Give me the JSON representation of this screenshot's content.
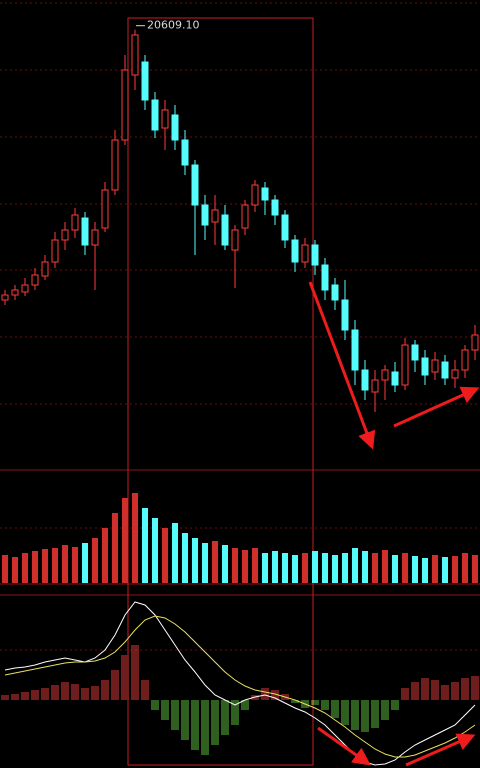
{
  "chart_data": [
    {
      "type": "candlestick",
      "up_color": "#ff3b3b",
      "down_color": "#54fcfc",
      "ylim": [
        7400,
        21500
      ],
      "open": [
        12500,
        12650,
        12740,
        12950,
        13220,
        13640,
        14300,
        14600,
        14960,
        14150,
        14660,
        15800,
        17300,
        19250,
        19640,
        18500,
        17660,
        18050,
        17300,
        16550,
        15350,
        14840,
        15050,
        14000,
        14660,
        15350,
        15860,
        15500,
        15050,
        14300,
        13640,
        14150,
        13550,
        12950,
        12500,
        11600,
        10400,
        9740,
        10100,
        10340,
        9950,
        11150,
        10760,
        10340,
        10640,
        10160,
        10400,
        11000
      ],
      "high": [
        12800,
        12950,
        13160,
        13460,
        13850,
        14540,
        14840,
        15260,
        15140,
        14840,
        16040,
        17600,
        19850,
        20609.1,
        19850,
        18740,
        18500,
        18350,
        17600,
        16700,
        15650,
        15650,
        15350,
        14750,
        15500,
        16100,
        16040,
        15650,
        15200,
        14450,
        14360,
        14300,
        13760,
        13160,
        13100,
        11900,
        10700,
        10400,
        10550,
        10640,
        11360,
        11300,
        11000,
        10940,
        10850,
        10700,
        11150,
        11750
      ],
      "high_labels": [
        null,
        null,
        null,
        null,
        null,
        null,
        null,
        null,
        null,
        null,
        null,
        null,
        null,
        "20609.10",
        null,
        null,
        null,
        null,
        null,
        null,
        null,
        null,
        null,
        null,
        null,
        null,
        null,
        null,
        null,
        null,
        null,
        null,
        null,
        null,
        null,
        null,
        null,
        null,
        null,
        null,
        null,
        null,
        null,
        null,
        null,
        null,
        null,
        null
      ],
      "low": [
        12350,
        12500,
        12620,
        12800,
        13100,
        13460,
        14000,
        14360,
        13850,
        12800,
        14540,
        15650,
        17150,
        18800,
        18200,
        17360,
        17000,
        17000,
        16250,
        13850,
        14300,
        14150,
        14000,
        12860,
        14450,
        15140,
        15050,
        14750,
        14060,
        13340,
        13460,
        13250,
        12500,
        12200,
        11300,
        9950,
        9500,
        9140,
        9500,
        9740,
        9800,
        10340,
        9950,
        10100,
        9950,
        9860,
        10160,
        10700
      ],
      "close": [
        12650,
        12800,
        12950,
        13250,
        13640,
        14300,
        14600,
        15050,
        14150,
        14600,
        15800,
        17300,
        19400,
        20450,
        18500,
        17600,
        18200,
        17300,
        16550,
        15350,
        14750,
        15200,
        14150,
        14600,
        15350,
        15950,
        15500,
        15050,
        14300,
        13640,
        14150,
        13550,
        12800,
        12500,
        11600,
        10400,
        9800,
        10100,
        10400,
        9950,
        11150,
        10700,
        10250,
        10700,
        10160,
        10400,
        11000,
        11450
      ]
    },
    {
      "type": "volume",
      "up_color": "#d0302c",
      "down_color": "#54fcfc",
      "ylim": [
        0,
        100
      ],
      "values": [
        28,
        26,
        30,
        32,
        34,
        35,
        38,
        36,
        40,
        45,
        55,
        70,
        85,
        90,
        75,
        65,
        55,
        60,
        50,
        45,
        40,
        42,
        38,
        35,
        33,
        35,
        30,
        32,
        30,
        28,
        30,
        32,
        30,
        28,
        30,
        35,
        32,
        30,
        33,
        28,
        30,
        27,
        25,
        28,
        26,
        27,
        30,
        28
      ]
    },
    {
      "type": "macd",
      "ylim": [
        -68,
        105
      ],
      "up_color": "#e03a3a",
      "down_color": "#5fbf3f",
      "histogram": [
        5,
        6,
        8,
        10,
        12,
        15,
        18,
        16,
        12,
        14,
        20,
        30,
        45,
        55,
        20,
        -10,
        -20,
        -30,
        -40,
        -50,
        -55,
        -45,
        -35,
        -25,
        -10,
        5,
        12,
        10,
        6,
        -3,
        -8,
        -5,
        -10,
        -18,
        -25,
        -30,
        -32,
        -28,
        -20,
        -10,
        12,
        18,
        22,
        20,
        15,
        18,
        22,
        24
      ],
      "series": [
        {
          "color": "#ffffff",
          "values": [
            30,
            32,
            33,
            35,
            38,
            40,
            42,
            40,
            38,
            42,
            50,
            65,
            85,
            98,
            95,
            85,
            70,
            55,
            40,
            28,
            15,
            5,
            0,
            -5,
            0,
            3,
            5,
            2,
            -3,
            -8,
            -12,
            -18,
            -25,
            -35,
            -45,
            -55,
            -62,
            -65,
            -64,
            -60,
            -52,
            -45,
            -40,
            -35,
            -30,
            -25,
            -15,
            -5
          ]
        },
        {
          "color": "#e8e060",
          "values": [
            25,
            27,
            29,
            31,
            33,
            35,
            37,
            38,
            38,
            39,
            42,
            48,
            58,
            70,
            80,
            84,
            82,
            76,
            68,
            58,
            48,
            38,
            28,
            20,
            14,
            10,
            8,
            6,
            3,
            0,
            -4,
            -8,
            -13,
            -20,
            -27,
            -35,
            -42,
            -49,
            -54,
            -57,
            -57,
            -55,
            -51,
            -47,
            -43,
            -38,
            -32,
            -25
          ]
        }
      ]
    }
  ]
}
